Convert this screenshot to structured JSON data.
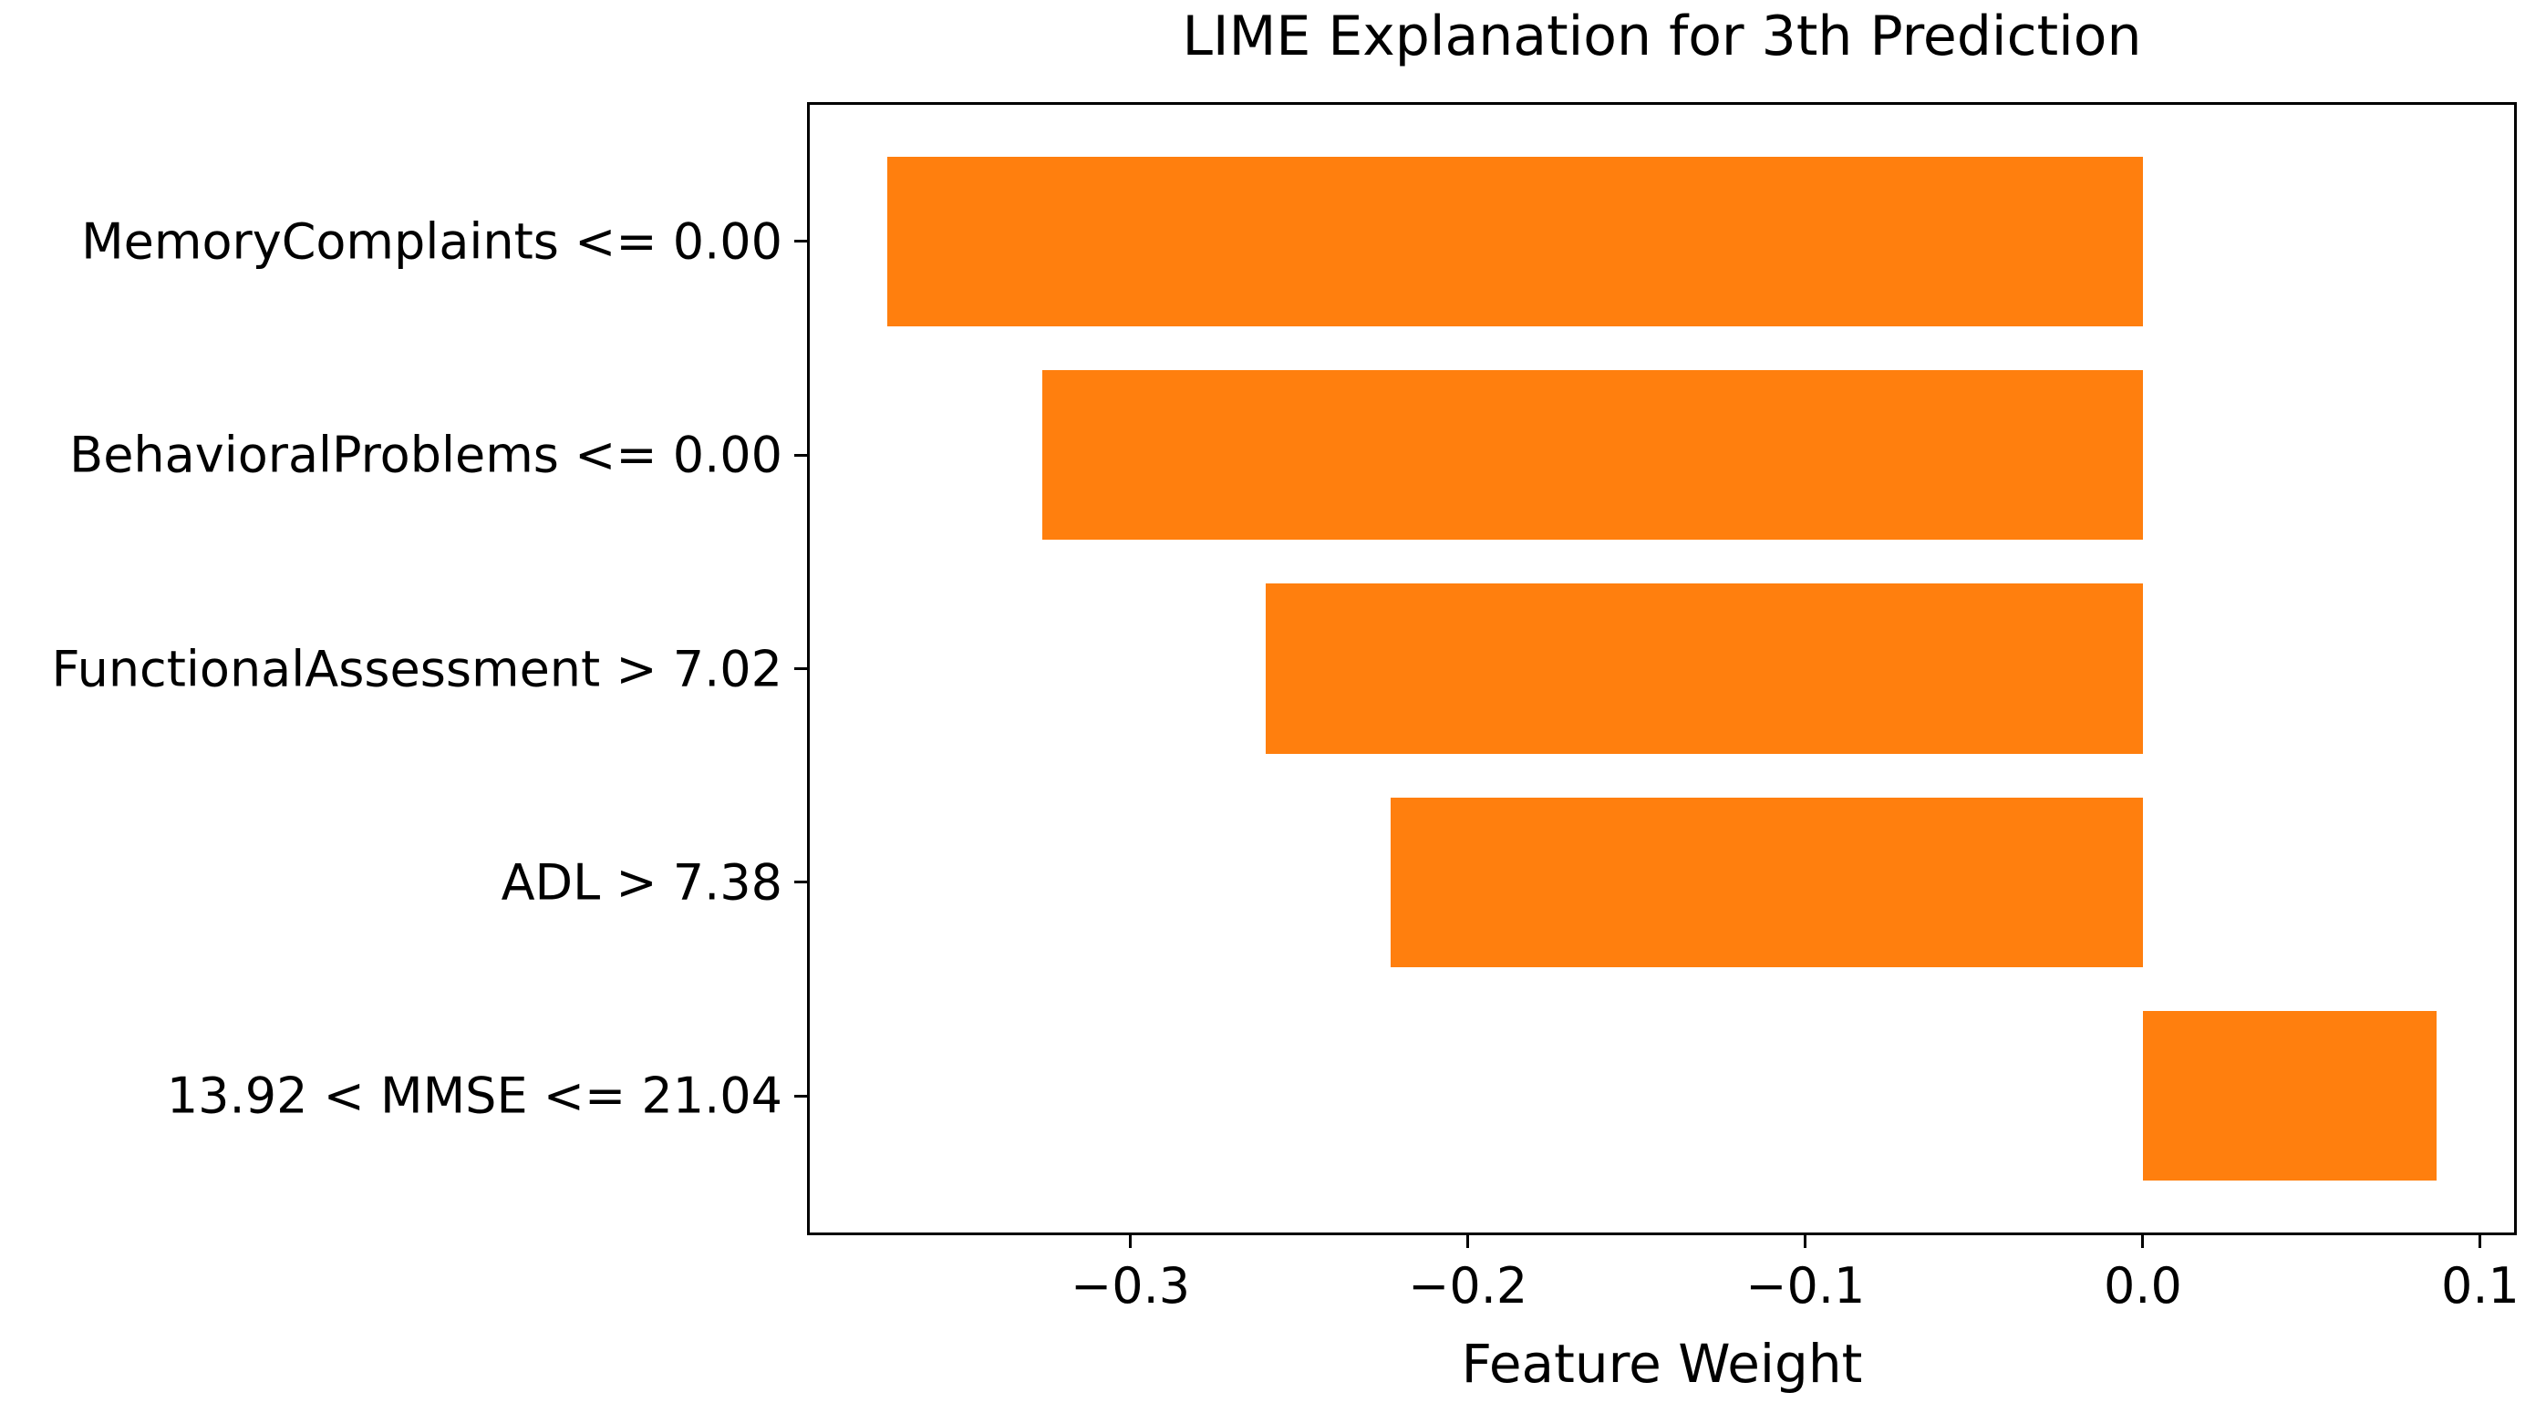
{
  "chart_data": {
    "type": "bar",
    "orientation": "horizontal",
    "title": "LIME Explanation for 3th Prediction",
    "xlabel": "Feature Weight",
    "ylabel": "",
    "categories": [
      "MemoryComplaints <= 0.00",
      "BehavioralProblems <= 0.00",
      "FunctionalAssessment > 7.02",
      "ADL > 7.38",
      "13.92 < MMSE <= 21.04"
    ],
    "values": [
      -0.372,
      -0.326,
      -0.26,
      -0.223,
      0.087
    ],
    "xlim": [
      -0.395,
      0.11
    ],
    "xticks": [
      -0.3,
      -0.2,
      -0.1,
      0.0,
      0.1
    ],
    "xtick_labels": [
      "−0.3",
      "−0.2",
      "−0.1",
      "0.0",
      "0.1"
    ],
    "bar_color": "#ff7f0e",
    "text_color": "#000000",
    "grid": false,
    "legend": null,
    "layout": {
      "bar_height_fraction": 0.1505,
      "first_category_center_fraction": 0.121,
      "last_category_center_fraction": 0.879
    }
  }
}
